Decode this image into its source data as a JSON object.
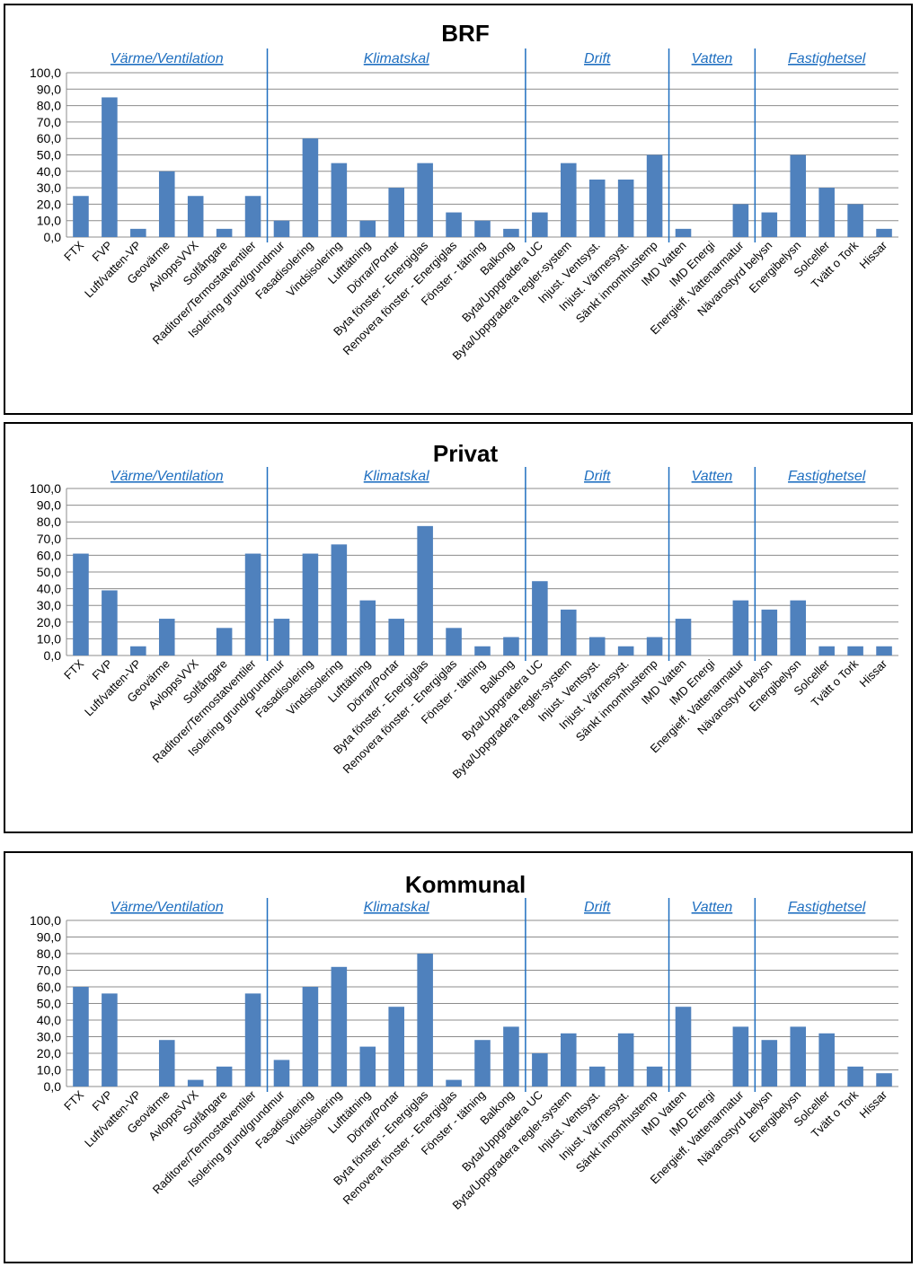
{
  "chart_data": [
    {
      "type": "bar",
      "title": "BRF",
      "categories": [
        "FTX",
        "FVP",
        "Luft/vatten-VP",
        "Geovärme",
        "AvloppsVVX",
        "Solfångare",
        "Raditorer/Termostatventiler",
        "Isolering grund/grundmur",
        "Fasadisolering",
        "Vindsisolering",
        "Lufttätning",
        "Dörrar/Portar",
        "Byta fönster - Energiglas",
        "Renovera fönster - Energiglas",
        "Fönster - tätning",
        "Balkong",
        "Byta/Uppgradera UC",
        "Byta/Uppgradera regler-system",
        "Injust. Ventsyst.",
        "Injust. Värmesyst.",
        "Sänkt innomhustemp",
        "IMD Vatten",
        "IMD Energi",
        "Energieff. Vattenarmatur",
        "Nävarostyrd belysn",
        "Energibelysn",
        "Solceller",
        "Tvätt o Tork",
        "Hissar"
      ],
      "values": [
        25,
        85,
        5,
        40,
        25,
        5,
        25,
        10,
        60,
        45,
        10,
        30,
        45,
        15,
        10,
        5,
        15,
        45,
        35,
        35,
        50,
        5,
        0,
        20,
        15,
        50,
        30,
        20,
        5
      ],
      "ylim": [
        0,
        100
      ],
      "yticks": [
        "0,0",
        "10,0",
        "20,0",
        "30,0",
        "40,0",
        "50,0",
        "60,0",
        "70,0",
        "80,0",
        "90,0",
        "100,0"
      ],
      "grid": true,
      "groups": [
        {
          "label": "Värme/Ventilation",
          "start": 0,
          "end": 6
        },
        {
          "label": "Klimatskal",
          "start": 7,
          "end": 15
        },
        {
          "label": "Drift",
          "start": 16,
          "end": 20
        },
        {
          "label": "Vatten",
          "start": 21,
          "end": 23
        },
        {
          "label": "Fastighetsel",
          "start": 24,
          "end": 28
        }
      ]
    },
    {
      "type": "bar",
      "title": "Privat",
      "categories": [
        "FTX",
        "FVP",
        "Luft/vatten-VP",
        "Geovärme",
        "AvloppsVVX",
        "Solfångare",
        "Raditorer/Termostatventiler",
        "Isolering grund/grundmur",
        "Fasadisolering",
        "Vindsisolering",
        "Lufttätning",
        "Dörrar/Portar",
        "Byta fönster - Energiglas",
        "Renovera fönster - Energiglas",
        "Fönster - tätning",
        "Balkong",
        "Byta/Uppgradera UC",
        "Byta/Uppgradera regler-system",
        "Injust. Ventsyst.",
        "Injust. Värmesyst.",
        "Sänkt innomhustemp",
        "IMD Vatten",
        "IMD Energi",
        "Energieff. Vattenarmatur",
        "Nävarostyrd belysn",
        "Energibelysn",
        "Solceller",
        "Tvätt o Tork",
        "Hissar"
      ],
      "values": [
        61,
        39,
        5.5,
        22,
        0,
        16.5,
        61,
        22,
        61,
        66.5,
        33,
        22,
        77.5,
        16.5,
        5.5,
        11,
        44.5,
        27.5,
        11,
        5.5,
        11,
        22,
        0,
        33,
        27.5,
        33,
        5.5,
        5.5,
        5.5
      ],
      "ylim": [
        0,
        100
      ],
      "yticks": [
        "0,0",
        "10,0",
        "20,0",
        "30,0",
        "40,0",
        "50,0",
        "60,0",
        "70,0",
        "80,0",
        "90,0",
        "100,0"
      ],
      "grid": true,
      "groups": [
        {
          "label": "Värme/Ventilation",
          "start": 0,
          "end": 6
        },
        {
          "label": "Klimatskal",
          "start": 7,
          "end": 15
        },
        {
          "label": "Drift",
          "start": 16,
          "end": 20
        },
        {
          "label": "Vatten",
          "start": 21,
          "end": 23
        },
        {
          "label": "Fastighetsel",
          "start": 24,
          "end": 28
        }
      ]
    },
    {
      "type": "bar",
      "title": "Kommunal",
      "categories": [
        "FTX",
        "FVP",
        "Luft/vatten-VP",
        "Geovärme",
        "AvloppsVVX",
        "Solfångare",
        "Raditorer/Termostatventiler",
        "Isolering grund/grundmur",
        "Fasadisolering",
        "Vindsisolering",
        "Lufttätning",
        "Dörrar/Portar",
        "Byta fönster - Energiglas",
        "Renovera fönster - Energiglas",
        "Fönster - tätning",
        "Balkong",
        "Byta/Uppgradera UC",
        "Byta/Uppgradera regler-system",
        "Injust. Ventsyst.",
        "Injust. Värmesyst.",
        "Sänkt innomhustemp",
        "IMD Vatten",
        "IMD Energi",
        "Energieff. Vattenarmatur",
        "Nävarostyrd belysn",
        "Energibelysn",
        "Solceller",
        "Tvätt o Tork",
        "Hissar"
      ],
      "values": [
        60,
        56,
        0,
        28,
        4,
        12,
        56,
        16,
        60,
        72,
        24,
        48,
        80,
        4,
        28,
        36,
        20,
        32,
        12,
        32,
        12,
        48,
        0,
        36,
        28,
        36,
        32,
        12,
        8
      ],
      "ylim": [
        0,
        100
      ],
      "yticks": [
        "0,0",
        "10,0",
        "20,0",
        "30,0",
        "40,0",
        "50,0",
        "60,0",
        "70,0",
        "80,0",
        "90,0",
        "100,0"
      ],
      "grid": true,
      "groups": [
        {
          "label": "Värme/Ventilation",
          "start": 0,
          "end": 6
        },
        {
          "label": "Klimatskal",
          "start": 7,
          "end": 15
        },
        {
          "label": "Drift",
          "start": 16,
          "end": 20
        },
        {
          "label": "Vatten",
          "start": 21,
          "end": 23
        },
        {
          "label": "Fastighetsel",
          "start": 24,
          "end": 28
        }
      ]
    }
  ]
}
